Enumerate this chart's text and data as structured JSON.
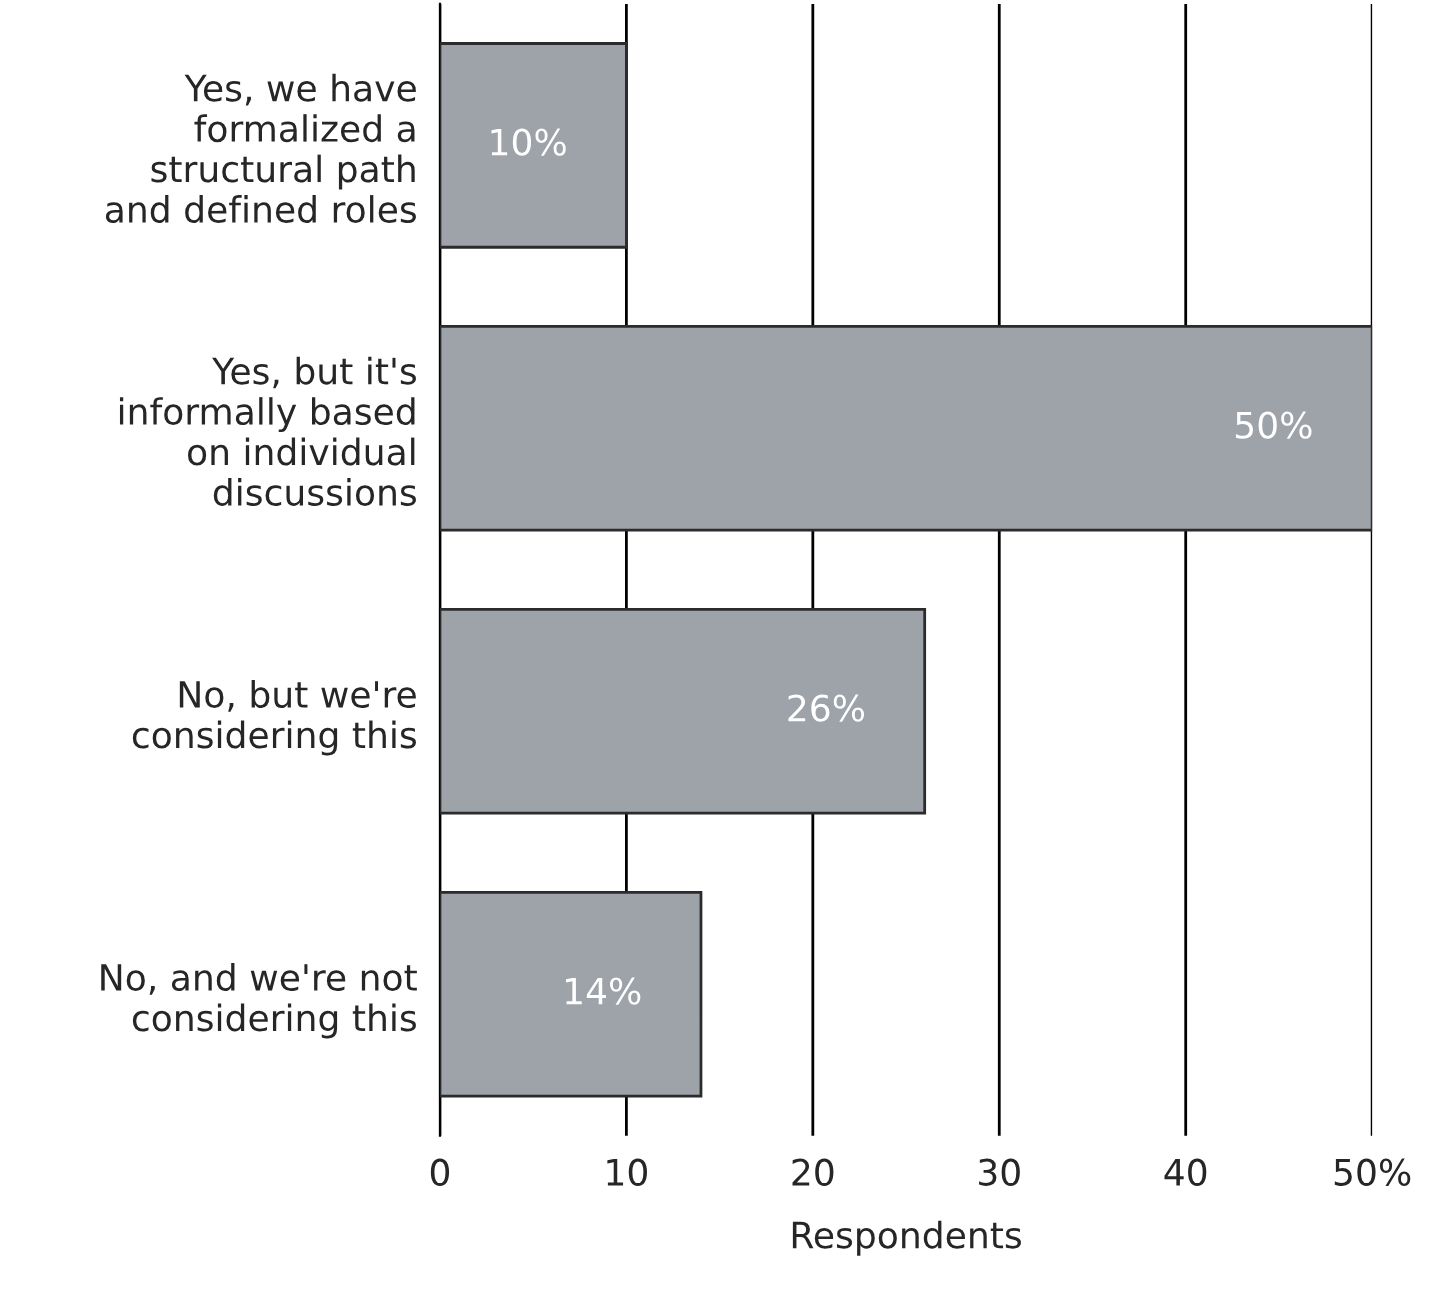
{
  "chart_data": {
    "type": "bar",
    "orientation": "horizontal",
    "xlabel": "Respondents",
    "categories": [
      "Yes, we have\nformalized a\nstructural path\nand defined roles",
      "Yes, but it's\ninformally based\non individual\ndiscussions",
      "No, but we're\nconsidering this",
      "No, and we're not\nconsidering this"
    ],
    "values": [
      10,
      50,
      26,
      14
    ],
    "color": "#9ea2a9",
    "value_labels": [
      "10%",
      "50%",
      "26%",
      "14%"
    ],
    "xlim": [
      0,
      50
    ],
    "xticks": [
      0,
      10,
      20,
      30,
      40,
      {
        "value": 50,
        "label": "50%"
      }
    ],
    "grid": "x",
    "legend": false
  }
}
